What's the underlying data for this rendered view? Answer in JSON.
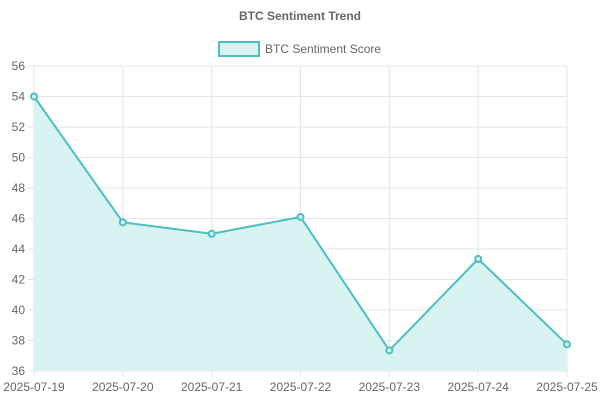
{
  "chart_data": {
    "type": "area",
    "title": "BTC Sentiment Trend",
    "xlabel": "",
    "ylabel": "",
    "categories": [
      "2025-07-19",
      "2025-07-20",
      "2025-07-21",
      "2025-07-22",
      "2025-07-23",
      "2025-07-24",
      "2025-07-25"
    ],
    "series": [
      {
        "name": "BTC Sentiment Score",
        "values": [
          54.0,
          45.75,
          45.0,
          46.1,
          37.35,
          43.35,
          37.75
        ],
        "line_color": "#4bc0c0",
        "fill_color": "#d9f2f2"
      }
    ],
    "ylim": [
      36,
      56
    ],
    "y_ticks": [
      36,
      38,
      40,
      42,
      44,
      46,
      48,
      50,
      52,
      54,
      56
    ],
    "grid": true,
    "legend_position": "top"
  }
}
